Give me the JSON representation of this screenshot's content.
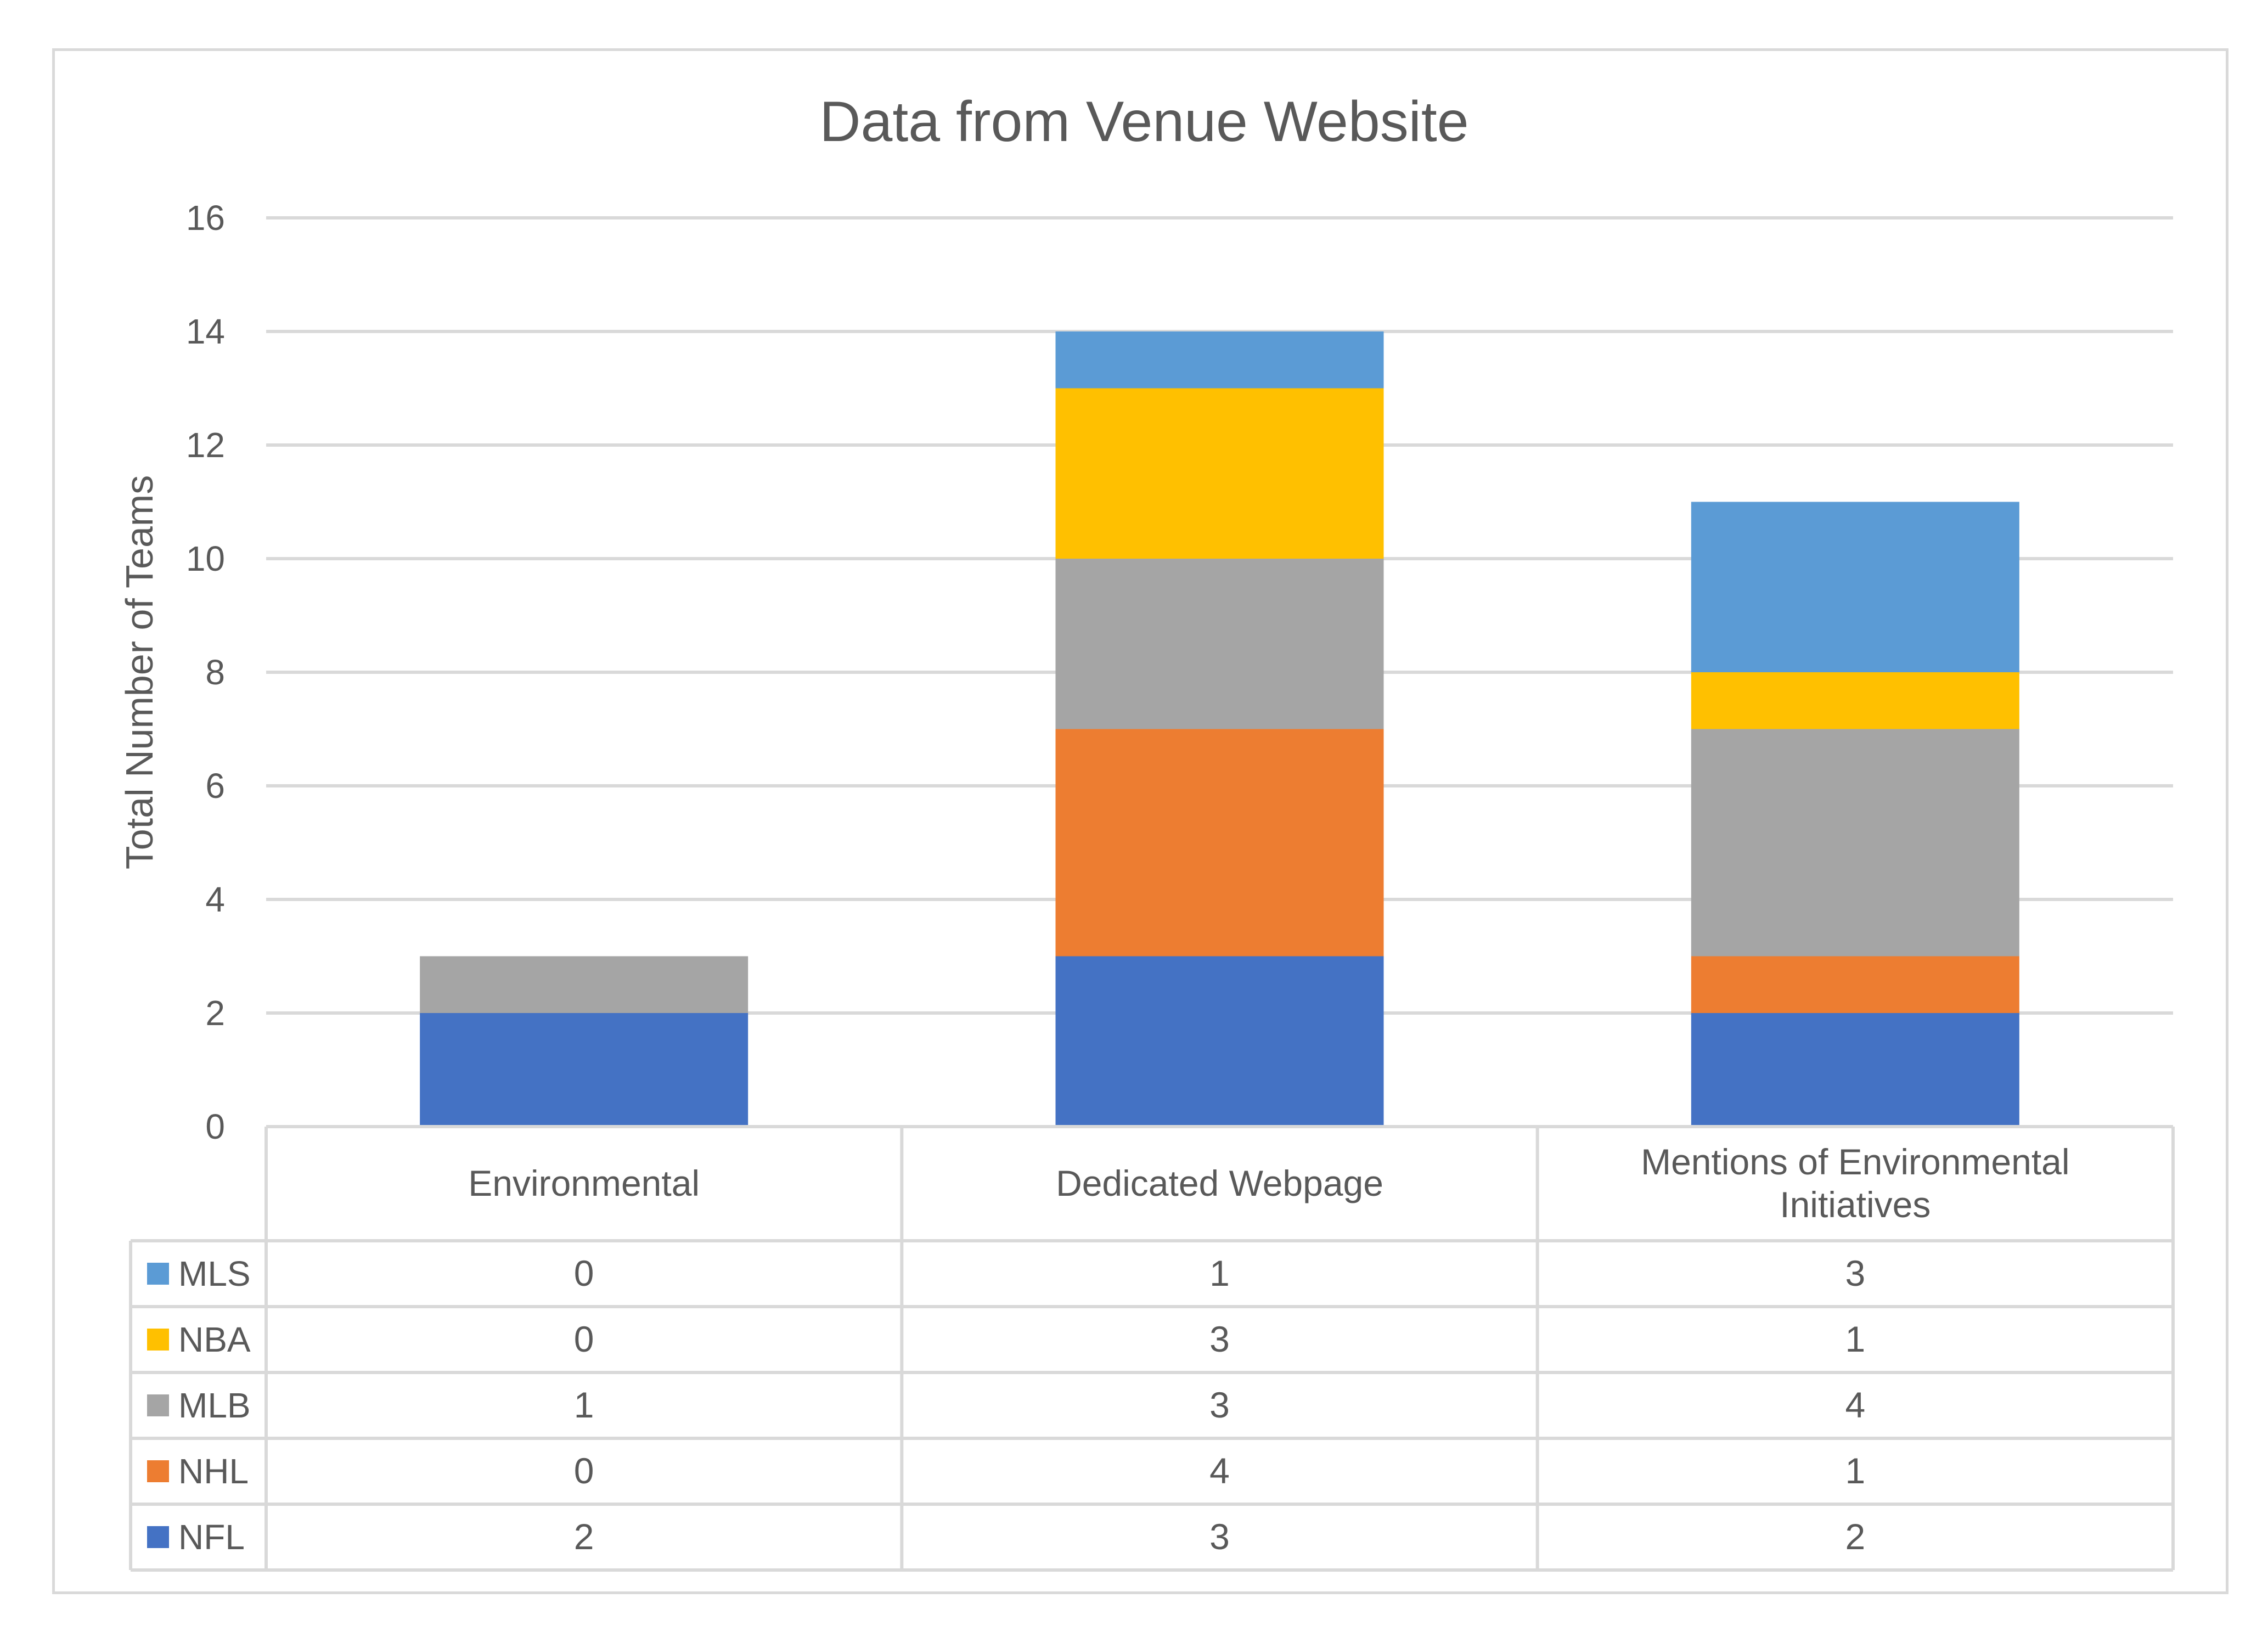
{
  "chart_data": {
    "type": "bar",
    "stacked": true,
    "title": "Data from Venue Website",
    "ylabel": "Total Number of Teams",
    "xlabel": "",
    "ylim": [
      0,
      16
    ],
    "yticks": [
      0,
      2,
      4,
      6,
      8,
      10,
      12,
      14,
      16
    ],
    "grid": true,
    "legend": "data table (left column)",
    "categories": [
      [
        "Environmental"
      ],
      [
        "Dedicated Webpage"
      ],
      [
        "Mentions of Environmental",
        "Initiatives"
      ]
    ],
    "series": [
      {
        "name": "NFL",
        "color": "#4472C4",
        "values": [
          2,
          3,
          2
        ]
      },
      {
        "name": "NHL",
        "color": "#ED7D31",
        "values": [
          0,
          4,
          1
        ]
      },
      {
        "name": "MLB",
        "color": "#A5A5A5",
        "values": [
          1,
          3,
          4
        ]
      },
      {
        "name": "NBA",
        "color": "#FFC000",
        "values": [
          0,
          3,
          1
        ]
      },
      {
        "name": "MLS",
        "color": "#5B9BD5",
        "values": [
          0,
          1,
          3
        ]
      }
    ],
    "table_row_order": [
      "MLS",
      "NBA",
      "MLB",
      "NHL",
      "NFL"
    ]
  }
}
